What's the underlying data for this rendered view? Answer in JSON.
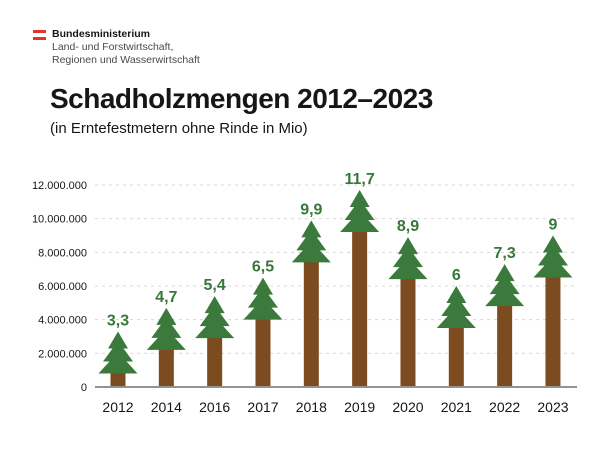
{
  "header": {
    "ministry": "Bundesministerium",
    "department_line1": "Land- und Forstwirtschaft,",
    "department_line2": "Regionen und Wasserwirtschaft",
    "flag_color": "#e2342c"
  },
  "title": "Schadholzmengen 2012–2023",
  "subtitle": "(in Erntefestmetern ohne Rinde in Mio)",
  "chart_data": {
    "type": "bar",
    "categories": [
      "2012",
      "2014",
      "2016",
      "2017",
      "2018",
      "2019",
      "2020",
      "2021",
      "2022",
      "2023"
    ],
    "values": [
      3.3,
      4.7,
      5.4,
      6.5,
      9.9,
      11.7,
      8.9,
      6,
      7.3,
      9
    ],
    "value_labels": [
      "3,3",
      "4,7",
      "5,4",
      "6,5",
      "9,9",
      "11,7",
      "8,9",
      "6",
      "7,3",
      "9"
    ],
    "title": "Schadholzmengen 2012–2023",
    "subtitle": "(in Erntefestmetern ohne Rinde in Mio)",
    "xlabel": "",
    "ylabel": "",
    "y_ticks": [
      12000000,
      10000000,
      8000000,
      6000000,
      4000000,
      2000000,
      0
    ],
    "y_tick_labels": [
      "12.000.000",
      "10.000.000",
      "8.000.000",
      "6.000.000",
      "4.000.000",
      "2.000.000",
      "0"
    ],
    "ylim": [
      0,
      12000000
    ],
    "grid": "dashed-horizontal",
    "legend": "none",
    "colors": {
      "trunk": "#7c4b20",
      "crown": "#3b7a3c",
      "label": "#38773a",
      "grid": "#d8d8d8",
      "axis": "#939393",
      "tick_text": "#161616"
    }
  }
}
